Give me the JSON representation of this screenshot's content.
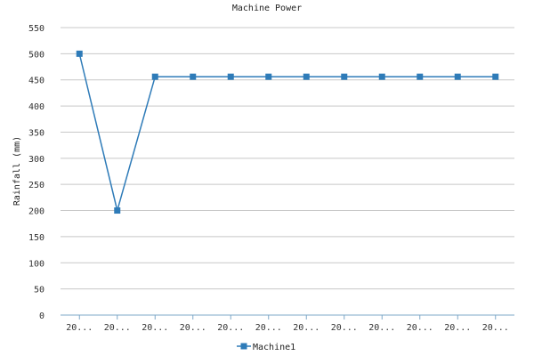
{
  "chart_data": {
    "type": "line",
    "title": "Machine Power",
    "xlabel": "",
    "ylabel": "Rainfall (mm)",
    "categories": [
      "20...",
      "20...",
      "20...",
      "20...",
      "20...",
      "20...",
      "20...",
      "20...",
      "20...",
      "20...",
      "20...",
      "20..."
    ],
    "series": [
      {
        "name": "Machine1",
        "values": [
          500,
          200,
          456,
          456,
          456,
          456,
          456,
          456,
          456,
          456,
          456,
          456
        ]
      }
    ],
    "ylim": [
      0,
      550
    ],
    "yticks": [
      0,
      50,
      100,
      150,
      200,
      250,
      300,
      350,
      400,
      450,
      500,
      550
    ],
    "grid": true,
    "legend": "bottom",
    "series_color": "#2e7bb8",
    "grid_color": "#c8c8c8"
  }
}
